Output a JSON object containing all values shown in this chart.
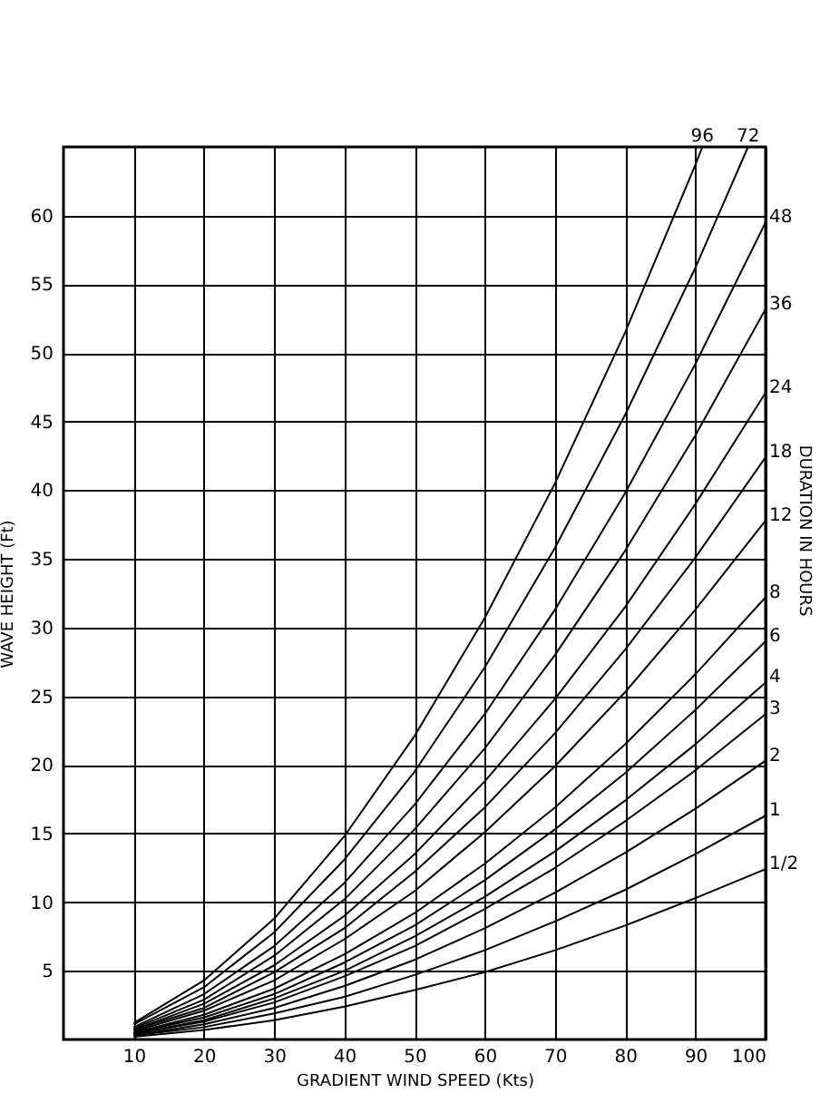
{
  "chart_data": {
    "type": "line",
    "xlabel": "GRADIENT WIND SPEED (Kts)",
    "ylabel": "WAVE HEIGHT (Ft)",
    "legend_title": "DURATION IN HOURS",
    "xlim": [
      0,
      100
    ],
    "xticks": [
      10,
      20,
      30,
      40,
      50,
      60,
      70,
      80,
      90,
      100
    ],
    "ylim": [
      0,
      65
    ],
    "yticks": [
      5,
      10,
      15,
      20,
      25,
      30,
      35,
      40,
      45,
      50,
      55,
      60
    ],
    "grid": true,
    "legend": false,
    "marker": "none",
    "line_style": "solid",
    "series": [
      {
        "name": "96",
        "color": "#000000",
        "x": [
          10,
          20,
          30,
          40,
          50,
          60,
          70,
          80,
          90,
          91
        ],
        "values": [
          1.2,
          4.3,
          8.8,
          14.8,
          22.1,
          30.7,
          40.5,
          51.5,
          63.7,
          65
        ]
      },
      {
        "name": "72",
        "color": "#000000",
        "x": [
          10,
          20,
          30,
          40,
          50,
          60,
          70,
          80,
          90,
          97.5
        ],
        "values": [
          1.1,
          3.8,
          7.8,
          13.1,
          19.5,
          27.1,
          35.8,
          45.5,
          56.2,
          65
        ]
      },
      {
        "name": "48",
        "color": "#000000",
        "x": [
          10,
          20,
          30,
          40,
          50,
          60,
          70,
          80,
          90,
          100
        ],
        "values": [
          0.9,
          3.3,
          6.8,
          11.4,
          17.1,
          23.7,
          31.3,
          39.8,
          49.2,
          59.5
        ]
      },
      {
        "name": "36",
        "color": "#000000",
        "x": [
          10,
          20,
          30,
          40,
          50,
          60,
          70,
          80,
          90,
          100
        ],
        "values": [
          0.8,
          2.9,
          6.1,
          10.2,
          15.3,
          21.2,
          28.0,
          35.6,
          44.0,
          53.2
        ]
      },
      {
        "name": "24",
        "color": "#000000",
        "x": [
          10,
          20,
          30,
          40,
          50,
          60,
          70,
          80,
          90,
          100
        ],
        "values": [
          0.7,
          2.6,
          5.4,
          9.0,
          13.5,
          18.8,
          24.8,
          31.5,
          39.0,
          47.1
        ]
      },
      {
        "name": "18",
        "color": "#000000",
        "x": [
          10,
          20,
          30,
          40,
          50,
          60,
          70,
          80,
          90,
          100
        ],
        "values": [
          0.7,
          2.3,
          4.9,
          8.1,
          12.2,
          16.9,
          22.3,
          28.4,
          35.1,
          42.4
        ]
      },
      {
        "name": "12",
        "color": "#000000",
        "x": [
          10,
          20,
          30,
          40,
          50,
          60,
          70,
          80,
          90,
          100
        ],
        "values": [
          0.6,
          2.1,
          4.3,
          7.3,
          10.8,
          15.1,
          19.9,
          25.3,
          31.3,
          37.8
        ]
      },
      {
        "name": "8",
        "color": "#000000",
        "x": [
          10,
          20,
          30,
          40,
          50,
          60,
          70,
          80,
          90,
          100
        ],
        "values": [
          0.5,
          1.8,
          3.7,
          6.2,
          9.2,
          12.8,
          16.9,
          21.5,
          26.6,
          32.2
        ]
      },
      {
        "name": "6",
        "color": "#000000",
        "x": [
          10,
          20,
          30,
          40,
          50,
          60,
          70,
          80,
          90,
          100
        ],
        "values": [
          0.5,
          1.6,
          3.3,
          5.6,
          8.3,
          11.6,
          15.3,
          19.4,
          24.0,
          29.0
        ]
      },
      {
        "name": "4",
        "color": "#000000",
        "x": [
          10,
          20,
          30,
          40,
          50,
          60,
          70,
          80,
          90,
          100
        ],
        "values": [
          0.4,
          1.4,
          3.0,
          5.0,
          7.5,
          10.4,
          13.7,
          17.4,
          21.5,
          26.0
        ]
      },
      {
        "name": "3",
        "color": "#000000",
        "x": [
          10,
          20,
          30,
          40,
          50,
          60,
          70,
          80,
          90,
          100
        ],
        "values": [
          0.4,
          1.3,
          2.7,
          4.6,
          6.8,
          9.5,
          12.5,
          15.9,
          19.6,
          23.7
        ]
      },
      {
        "name": "2",
        "color": "#000000",
        "x": [
          10,
          20,
          30,
          40,
          50,
          60,
          70,
          80,
          90,
          100
        ],
        "values": [
          0.3,
          1.1,
          2.3,
          3.9,
          5.8,
          8.1,
          10.7,
          13.6,
          16.8,
          20.3
        ]
      },
      {
        "name": "1",
        "color": "#000000",
        "x": [
          10,
          20,
          30,
          40,
          50,
          60,
          70,
          80,
          90,
          100
        ],
        "values": [
          0.3,
          0.9,
          1.9,
          3.1,
          4.7,
          6.5,
          8.6,
          10.9,
          13.5,
          16.3
        ]
      },
      {
        "name": "1/2",
        "color": "#000000",
        "x": [
          10,
          20,
          30,
          40,
          50,
          60,
          70,
          80,
          90,
          100
        ],
        "values": [
          0.2,
          0.7,
          1.4,
          2.4,
          3.6,
          4.9,
          6.5,
          8.3,
          10.3,
          12.4
        ]
      }
    ]
  }
}
